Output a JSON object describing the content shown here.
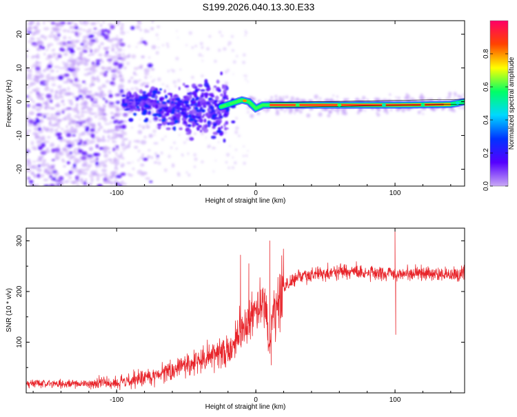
{
  "title": "S199.2026.040.13.30.E33",
  "chart_data": [
    {
      "type": "heatmap",
      "xlabel": "Height of straight line (km)",
      "ylabel": "Frequency (Hz)",
      "xlim": [
        -165,
        150
      ],
      "ylim": [
        -25,
        24
      ],
      "xticks": [
        -100,
        0,
        100
      ],
      "yticks": [
        -20,
        -10,
        0,
        10,
        20
      ],
      "colorbar": {
        "label": "Normalized spectral amplitude",
        "range": [
          0.0,
          1.0
        ],
        "ticks": [
          "0.0",
          "0.2",
          "0.4",
          "0.6",
          "0.8"
        ],
        "tick_values": [
          0.0,
          0.2,
          0.4,
          0.6,
          0.8
        ],
        "stops": [
          "#c9a8f5",
          "#5500ff",
          "#0033ff",
          "#00d8ff",
          "#00ff66",
          "#ffff00",
          "#ff4400",
          "#ff0066"
        ]
      },
      "features": {
        "scatter_region_x": [
          -165,
          -95
        ],
        "scatter_amplitude": 0.15,
        "cluster_x": [
          -95,
          -20
        ],
        "cluster_amplitude": 0.4,
        "trace_freq": [
          [
            -25,
            -1.5
          ],
          [
            -10,
            0.5
          ],
          [
            -5,
            0
          ],
          [
            0,
            -2
          ],
          [
            5,
            -1
          ],
          [
            10,
            -1
          ],
          [
            100,
            -1
          ],
          [
            140,
            -0.8
          ],
          [
            150,
            0
          ]
        ],
        "trace_amplitude": 0.9
      }
    },
    {
      "type": "line",
      "xlabel": "Height of straight line (km)",
      "ylabel": "SNR (10 * v/v)",
      "xlim": [
        -165,
        150
      ],
      "ylim": [
        0,
        325
      ],
      "xticks": [
        -100,
        0,
        100
      ],
      "yticks": [
        100,
        200,
        300
      ],
      "color": "#e8252b",
      "trend": {
        "x": [
          -165,
          -120,
          -100,
          -80,
          -60,
          -40,
          -20,
          -10,
          0,
          5,
          8,
          10,
          12,
          20,
          30,
          60,
          100,
          150
        ],
        "y": [
          18,
          18,
          20,
          30,
          45,
          65,
          85,
          120,
          160,
          175,
          140,
          80,
          150,
          205,
          230,
          240,
          235,
          235
        ]
      },
      "spikes": [
        {
          "x": -11,
          "y": 272
        },
        {
          "x": -5,
          "y": 255
        },
        {
          "x": 10,
          "y": 300
        },
        {
          "x": 11,
          "y": 55
        },
        {
          "x": 100,
          "y": 325
        },
        {
          "x": 100.5,
          "y": 115
        }
      ]
    }
  ]
}
